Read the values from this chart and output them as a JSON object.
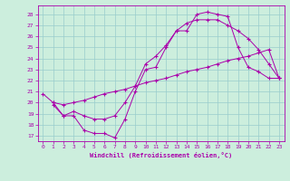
{
  "xlabel": "Windchill (Refroidissement éolien,°C)",
  "bg_color": "#cceedd",
  "line_color": "#aa00aa",
  "grid_color": "#99cccc",
  "xlim": [
    -0.5,
    23.5
  ],
  "ylim": [
    16.5,
    28.8
  ],
  "xticks": [
    0,
    1,
    2,
    3,
    4,
    5,
    6,
    7,
    8,
    9,
    10,
    11,
    12,
    13,
    14,
    15,
    16,
    17,
    18,
    19,
    20,
    21,
    22,
    23
  ],
  "yticks": [
    17,
    18,
    19,
    20,
    21,
    22,
    23,
    24,
    25,
    26,
    27,
    28
  ],
  "lines": [
    {
      "x": [
        0,
        1,
        2,
        3,
        4,
        5,
        6,
        7,
        8,
        9,
        10,
        11,
        12,
        13,
        14,
        15,
        16,
        17,
        18,
        19,
        20,
        21,
        22,
        23
      ],
      "y": [
        20.8,
        20.0,
        18.8,
        18.8,
        17.5,
        17.2,
        17.2,
        16.8,
        18.5,
        21.0,
        23.0,
        23.2,
        25.0,
        26.5,
        26.5,
        28.0,
        28.2,
        28.0,
        27.8,
        25.0,
        23.2,
        22.8,
        22.2,
        22.2
      ]
    },
    {
      "x": [
        1,
        2,
        3,
        4,
        5,
        6,
        7,
        8,
        9,
        10,
        11,
        12,
        13,
        14,
        15,
        16,
        17,
        18,
        19,
        20,
        21,
        22,
        23
      ],
      "y": [
        19.8,
        18.8,
        19.2,
        18.8,
        18.5,
        18.5,
        18.8,
        20.0,
        21.5,
        23.5,
        24.2,
        25.2,
        26.5,
        27.2,
        27.5,
        27.5,
        27.5,
        27.0,
        26.5,
        25.8,
        24.8,
        23.5,
        22.2
      ]
    },
    {
      "x": [
        1,
        2,
        3,
        4,
        5,
        6,
        7,
        8,
        9,
        10,
        11,
        12,
        13,
        14,
        15,
        16,
        17,
        18,
        19,
        20,
        21,
        22,
        23
      ],
      "y": [
        20.0,
        19.8,
        20.0,
        20.2,
        20.5,
        20.8,
        21.0,
        21.2,
        21.5,
        21.8,
        22.0,
        22.2,
        22.5,
        22.8,
        23.0,
        23.2,
        23.5,
        23.8,
        24.0,
        24.2,
        24.5,
        24.8,
        22.2
      ]
    }
  ]
}
